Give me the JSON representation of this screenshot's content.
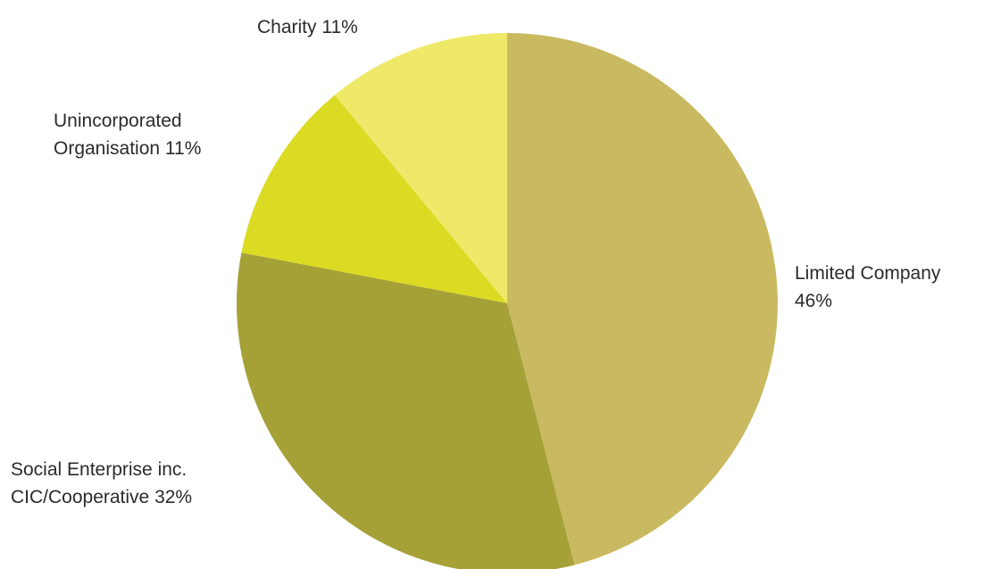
{
  "chart_data": {
    "type": "pie",
    "slices": [
      {
        "label_lines": [
          "Limited Company",
          "46%"
        ],
        "value": 46,
        "color": "#c9ba61"
      },
      {
        "label_lines": [
          "Social Enterprise inc.",
          "CIC/Cooperative  32%"
        ],
        "value": 32,
        "color": "#a6a137"
      },
      {
        "label_lines": [
          "Unincorporated",
          "Organisation  11%"
        ],
        "value": 11,
        "color": "#dcdb23"
      },
      {
        "label_lines": [
          "Charity 11%"
        ],
        "value": 11,
        "color": "#efe96a"
      }
    ]
  }
}
